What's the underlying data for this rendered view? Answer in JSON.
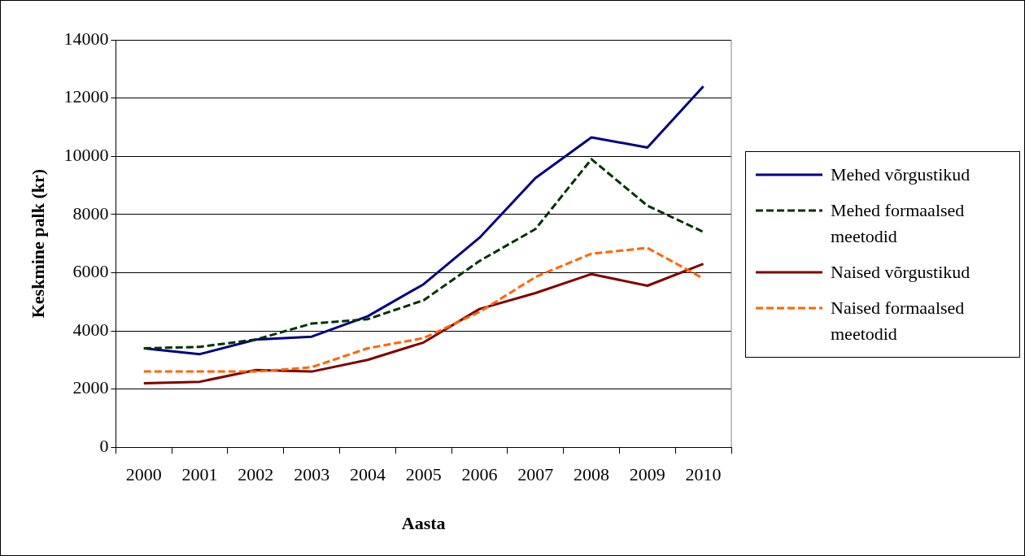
{
  "chart_data": {
    "type": "line",
    "xlabel": "Aasta",
    "ylabel": "Keskmine palk (kr)",
    "categories": [
      "2000",
      "2001",
      "2002",
      "2003",
      "2004",
      "2005",
      "2006",
      "2007",
      "2008",
      "2009",
      "2010"
    ],
    "series": [
      {
        "name": "Mehed võrgustikud",
        "color": "#000080",
        "line_style": "solid",
        "values": [
          3400,
          3200,
          3700,
          3800,
          4500,
          5600,
          7200,
          9250,
          10650,
          10300,
          12400
        ]
      },
      {
        "name": "Mehed formaalsed meetodid",
        "color": "#003300",
        "line_style": "dashed",
        "values": [
          3400,
          3450,
          3700,
          4250,
          4400,
          5050,
          6400,
          7500,
          9900,
          8300,
          7400
        ]
      },
      {
        "name": "Naised võrgustikud",
        "color": "#800000",
        "line_style": "solid",
        "values": [
          2200,
          2250,
          2650,
          2600,
          3000,
          3600,
          4750,
          5300,
          5950,
          5550,
          6300
        ]
      },
      {
        "name": "Naised formaalsed meetodid",
        "color": "#ff6600",
        "line_style": "dashed",
        "values": [
          2600,
          2600,
          2600,
          2750,
          3400,
          3750,
          4650,
          5850,
          6650,
          6850,
          5800
        ]
      }
    ],
    "ylim": [
      0,
      14000
    ],
    "yticks": [
      0,
      2000,
      4000,
      6000,
      8000,
      10000,
      12000,
      14000
    ],
    "grid": "y",
    "legend": "right",
    "marker": "none"
  }
}
